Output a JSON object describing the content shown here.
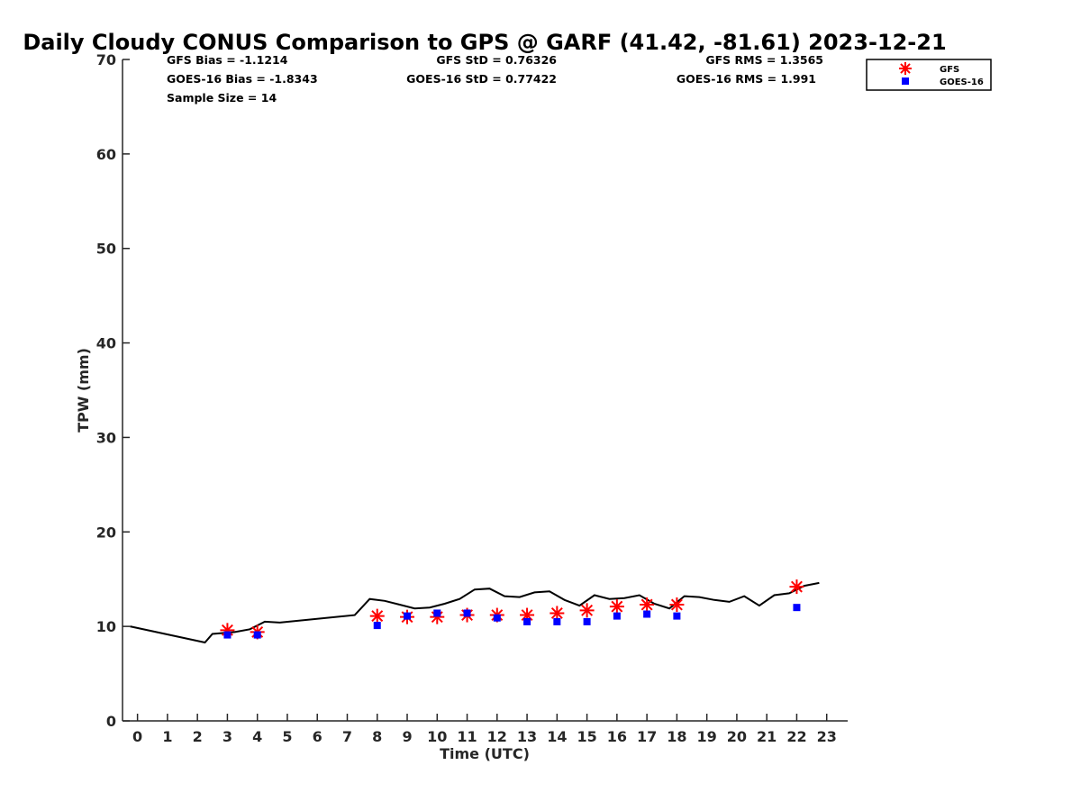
{
  "chart_data": {
    "type": "scatter",
    "title": "Daily Cloudy CONUS Comparison to GPS @ GARF (41.42, -81.61) 2023-12-21",
    "xlabel": "Time (UTC)",
    "ylabel": "TPW (mm)",
    "xlim": [
      -0.5,
      23.7
    ],
    "ylim": [
      0,
      70
    ],
    "x_ticks": [
      "0",
      "1",
      "2",
      "3",
      "4",
      "5",
      "6",
      "7",
      "8",
      "9",
      "10",
      "11",
      "12",
      "13",
      "14",
      "15",
      "16",
      "17",
      "18",
      "19",
      "20",
      "21",
      "22",
      "23"
    ],
    "y_ticks": [
      "0",
      "10",
      "20",
      "30",
      "40",
      "50",
      "60",
      "70"
    ],
    "grid": false,
    "legend_position": "top-right",
    "stats": {
      "gfs_bias": "GFS Bias = -1.1214",
      "goes_bias": "GOES-16 Bias = -1.8343",
      "sample_size": "Sample Size = 14",
      "gfs_std": "GFS StD = 0.76326",
      "goes_std": "GOES-16 StD = 0.77422",
      "gfs_rms": "GFS RMS = 1.3565",
      "goes_rms": "GOES-16 RMS = 1.991"
    },
    "series": [
      {
        "name": "GPS",
        "kind": "line",
        "color": "#000000",
        "x": [
          -0.25,
          2.25,
          2.5,
          3.25,
          3.75,
          4.25,
          4.75,
          7.25,
          7.75,
          8.25,
          8.75,
          9.25,
          9.75,
          10.25,
          10.75,
          11.25,
          11.75,
          12.25,
          12.75,
          13.25,
          13.75,
          14.25,
          14.75,
          15.25,
          15.75,
          16.25,
          16.75,
          17.25,
          17.75,
          18.25,
          18.75,
          19.25,
          19.75,
          20.25,
          20.75,
          21.25,
          21.75,
          22.25,
          22.75
        ],
        "y": [
          10.0,
          8.3,
          9.2,
          9.4,
          9.7,
          10.5,
          10.4,
          11.2,
          12.9,
          12.7,
          12.3,
          11.9,
          12.0,
          12.4,
          12.9,
          13.9,
          14.0,
          13.2,
          13.1,
          13.6,
          13.7,
          12.8,
          12.2,
          13.3,
          12.9,
          13.0,
          13.3,
          12.4,
          11.9,
          13.2,
          13.1,
          12.8,
          12.6,
          13.2,
          12.2,
          13.3,
          13.5,
          14.3,
          14.6
        ]
      },
      {
        "name": "GFS",
        "kind": "asterisk",
        "color": "#ff0000",
        "x": [
          3,
          4,
          8,
          9,
          10,
          11,
          12,
          13,
          14,
          15,
          16,
          17,
          18,
          22
        ],
        "y": [
          9.6,
          9.4,
          11.1,
          11.0,
          11.0,
          11.2,
          11.2,
          11.2,
          11.4,
          11.7,
          12.1,
          12.3,
          12.3,
          14.2
        ]
      },
      {
        "name": "GOES-16",
        "kind": "square",
        "color": "#0000ff",
        "x": [
          3,
          4,
          8,
          9,
          10,
          11,
          12,
          13,
          14,
          15,
          16,
          17,
          18,
          22
        ],
        "y": [
          9.1,
          9.1,
          10.1,
          11.1,
          11.4,
          11.4,
          10.9,
          10.5,
          10.5,
          10.5,
          11.1,
          11.3,
          11.1,
          12.0
        ]
      }
    ]
  }
}
